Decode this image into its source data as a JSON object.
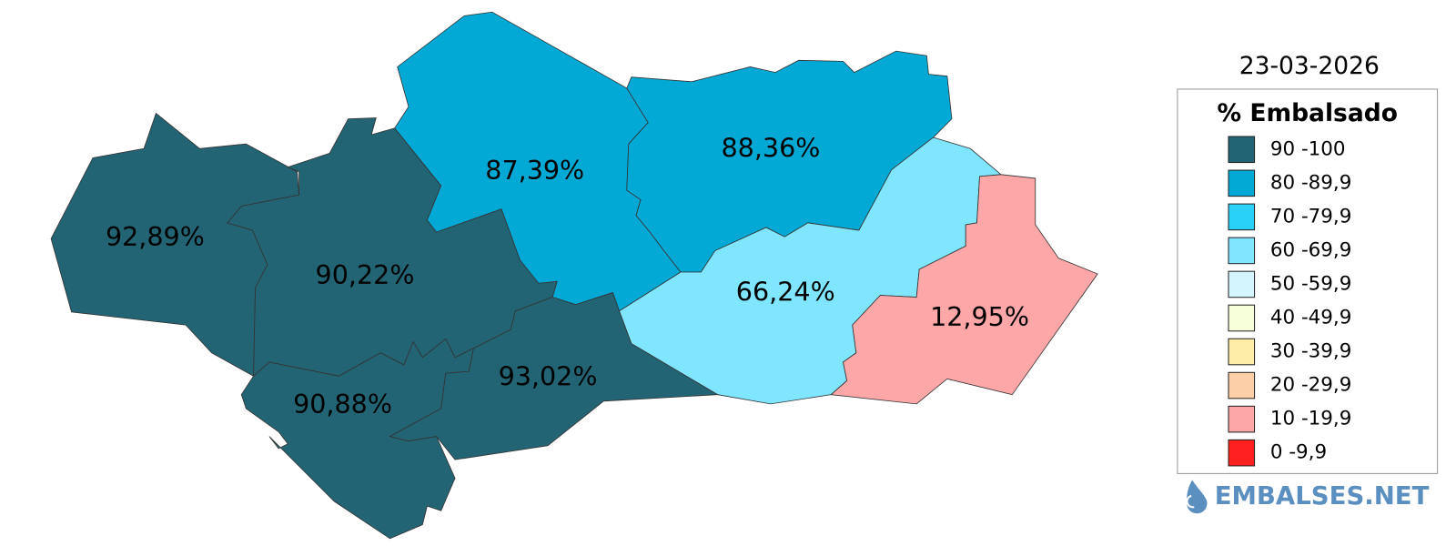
{
  "date": "23-03-2026",
  "legend": {
    "title": "% Embalsado",
    "items": [
      {
        "label": "90 -100",
        "color": "#236474"
      },
      {
        "label": "80 -89,9",
        "color": "#02a9d5"
      },
      {
        "label": "70 -79,9",
        "color": "#29d0f8"
      },
      {
        "label": "60 -69,9",
        "color": "#80e5fe"
      },
      {
        "label": "50 -59,9",
        "color": "#d4f5fe"
      },
      {
        "label": "40 -49,9",
        "color": "#f7feda"
      },
      {
        "label": "30 -39,9",
        "color": "#feeda8"
      },
      {
        "label": "20 -29,9",
        "color": "#fdcfa8"
      },
      {
        "label": "10 -19,9",
        "color": "#fda7a8"
      },
      {
        "label": "0 -9,9",
        "color": "#ff2020"
      }
    ]
  },
  "regions": [
    {
      "label": "92,89%",
      "color": "#236474"
    },
    {
      "label": "90,22%",
      "color": "#236474"
    },
    {
      "label": "90,88%",
      "color": "#236474"
    },
    {
      "label": "93,02%",
      "color": "#236474"
    },
    {
      "label": "87,39%",
      "color": "#02a9d5"
    },
    {
      "label": "88,36%",
      "color": "#02a9d5"
    },
    {
      "label": "66,24%",
      "color": "#80e5fe"
    },
    {
      "label": "12,95%",
      "color": "#fda7a8"
    }
  ],
  "logo": "EMBALSES.NET"
}
